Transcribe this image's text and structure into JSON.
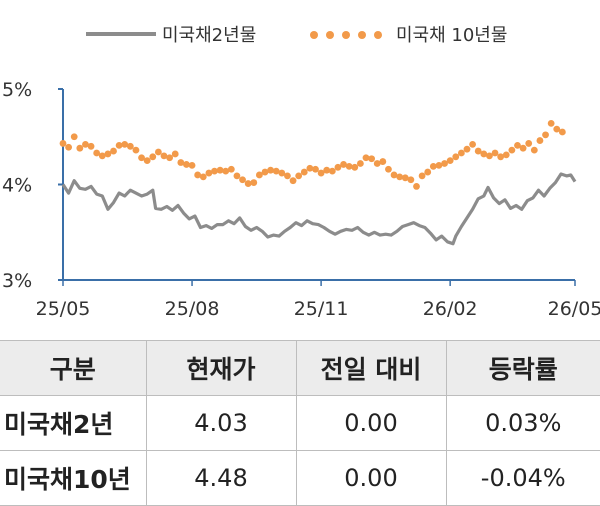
{
  "chart_data": {
    "type": "line",
    "series": [
      {
        "name": "미국채2년물",
        "color": "#8c8c8c",
        "style": "solid",
        "values": [
          [
            "2025-05-01",
            4.0
          ],
          [
            "2025-05-05",
            3.91
          ],
          [
            "2025-05-09",
            4.04
          ],
          [
            "2025-05-13",
            3.96
          ],
          [
            "2025-05-17",
            3.95
          ],
          [
            "2025-05-21",
            3.98
          ],
          [
            "2025-05-25",
            3.9
          ],
          [
            "2025-05-29",
            3.88
          ],
          [
            "2025-06-02",
            3.74
          ],
          [
            "2025-06-06",
            3.81
          ],
          [
            "2025-06-10",
            3.91
          ],
          [
            "2025-06-14",
            3.88
          ],
          [
            "2025-06-18",
            3.94
          ],
          [
            "2025-06-22",
            3.91
          ],
          [
            "2025-06-26",
            3.88
          ],
          [
            "2025-06-30",
            3.9
          ],
          [
            "2025-07-04",
            3.94
          ],
          [
            "2025-07-06",
            3.75
          ],
          [
            "2025-07-10",
            3.74
          ],
          [
            "2025-07-14",
            3.77
          ],
          [
            "2025-07-18",
            3.73
          ],
          [
            "2025-07-22",
            3.78
          ],
          [
            "2025-07-26",
            3.7
          ],
          [
            "2025-07-30",
            3.64
          ],
          [
            "2025-08-03",
            3.67
          ],
          [
            "2025-08-07",
            3.55
          ],
          [
            "2025-08-11",
            3.57
          ],
          [
            "2025-08-15",
            3.54
          ],
          [
            "2025-08-19",
            3.58
          ],
          [
            "2025-08-23",
            3.58
          ],
          [
            "2025-08-27",
            3.62
          ],
          [
            "2025-08-31",
            3.59
          ],
          [
            "2025-09-04",
            3.65
          ],
          [
            "2025-09-08",
            3.56
          ],
          [
            "2025-09-12",
            3.52
          ],
          [
            "2025-09-16",
            3.55
          ],
          [
            "2025-09-20",
            3.51
          ],
          [
            "2025-09-24",
            3.45
          ],
          [
            "2025-09-28",
            3.47
          ],
          [
            "2025-10-02",
            3.46
          ],
          [
            "2025-10-06",
            3.51
          ],
          [
            "2025-10-10",
            3.55
          ],
          [
            "2025-10-14",
            3.6
          ],
          [
            "2025-10-18",
            3.57
          ],
          [
            "2025-10-22",
            3.62
          ],
          [
            "2025-10-26",
            3.59
          ],
          [
            "2025-10-30",
            3.58
          ],
          [
            "2025-11-03",
            3.55
          ],
          [
            "2025-11-07",
            3.51
          ],
          [
            "2025-11-11",
            3.48
          ],
          [
            "2025-11-15",
            3.51
          ],
          [
            "2025-11-19",
            3.53
          ],
          [
            "2025-11-23",
            3.52
          ],
          [
            "2025-11-27",
            3.55
          ],
          [
            "2025-12-01",
            3.5
          ],
          [
            "2025-12-05",
            3.47
          ],
          [
            "2025-12-09",
            3.5
          ],
          [
            "2025-12-13",
            3.47
          ],
          [
            "2025-12-17",
            3.48
          ],
          [
            "2025-12-21",
            3.47
          ],
          [
            "2025-12-25",
            3.51
          ],
          [
            "2025-12-29",
            3.56
          ],
          [
            "2026-01-02",
            3.58
          ],
          [
            "2026-01-06",
            3.6
          ],
          [
            "2026-01-10",
            3.57
          ],
          [
            "2026-01-14",
            3.55
          ],
          [
            "2026-01-18",
            3.49
          ],
          [
            "2026-01-22",
            3.42
          ],
          [
            "2026-01-26",
            3.46
          ],
          [
            "2026-01-30",
            3.4
          ],
          [
            "2026-02-03",
            3.38
          ],
          [
            "2026-02-05",
            3.46
          ],
          [
            "2026-02-09",
            3.56
          ],
          [
            "2026-02-13",
            3.65
          ],
          [
            "2026-02-17",
            3.74
          ],
          [
            "2026-02-21",
            3.85
          ],
          [
            "2026-02-25",
            3.88
          ],
          [
            "2026-02-28",
            3.97
          ],
          [
            "2026-03-04",
            3.86
          ],
          [
            "2026-03-08",
            3.8
          ],
          [
            "2026-03-12",
            3.84
          ],
          [
            "2026-03-16",
            3.75
          ],
          [
            "2026-03-20",
            3.78
          ],
          [
            "2026-03-24",
            3.74
          ],
          [
            "2026-03-28",
            3.83
          ],
          [
            "2026-04-01",
            3.86
          ],
          [
            "2026-04-05",
            3.94
          ],
          [
            "2026-04-09",
            3.88
          ],
          [
            "2026-04-13",
            3.96
          ],
          [
            "2026-04-17",
            4.02
          ],
          [
            "2026-04-21",
            4.11
          ],
          [
            "2026-04-25",
            4.09
          ],
          [
            "2026-04-28",
            4.1
          ],
          [
            "2026-05-01",
            4.03
          ]
        ]
      },
      {
        "name": "미국채 10년물",
        "color": "#f29a4a",
        "style": "dotted",
        "values": [
          [
            "2025-05-01",
            4.43
          ],
          [
            "2025-05-05",
            4.39
          ],
          [
            "2025-05-09",
            4.5
          ],
          [
            "2025-05-13",
            4.38
          ],
          [
            "2025-05-17",
            4.42
          ],
          [
            "2025-05-21",
            4.4
          ],
          [
            "2025-05-25",
            4.33
          ],
          [
            "2025-05-29",
            4.3
          ],
          [
            "2025-06-02",
            4.32
          ],
          [
            "2025-06-06",
            4.35
          ],
          [
            "2025-06-10",
            4.41
          ],
          [
            "2025-06-14",
            4.42
          ],
          [
            "2025-06-18",
            4.4
          ],
          [
            "2025-06-22",
            4.36
          ],
          [
            "2025-06-26",
            4.28
          ],
          [
            "2025-06-30",
            4.25
          ],
          [
            "2025-07-04",
            4.29
          ],
          [
            "2025-07-08",
            4.34
          ],
          [
            "2025-07-12",
            4.3
          ],
          [
            "2025-07-16",
            4.28
          ],
          [
            "2025-07-20",
            4.32
          ],
          [
            "2025-07-24",
            4.23
          ],
          [
            "2025-07-28",
            4.21
          ],
          [
            "2025-08-01",
            4.2
          ],
          [
            "2025-08-05",
            4.1
          ],
          [
            "2025-08-09",
            4.08
          ],
          [
            "2025-08-13",
            4.12
          ],
          [
            "2025-08-17",
            4.14
          ],
          [
            "2025-08-21",
            4.15
          ],
          [
            "2025-08-25",
            4.14
          ],
          [
            "2025-08-29",
            4.16
          ],
          [
            "2025-09-02",
            4.09
          ],
          [
            "2025-09-06",
            4.05
          ],
          [
            "2025-09-10",
            4.01
          ],
          [
            "2025-09-14",
            4.02
          ],
          [
            "2025-09-18",
            4.1
          ],
          [
            "2025-09-22",
            4.13
          ],
          [
            "2025-09-26",
            4.15
          ],
          [
            "2025-09-30",
            4.14
          ],
          [
            "2025-10-04",
            4.12
          ],
          [
            "2025-10-08",
            4.09
          ],
          [
            "2025-10-12",
            4.04
          ],
          [
            "2025-10-16",
            4.09
          ],
          [
            "2025-10-20",
            4.13
          ],
          [
            "2025-10-24",
            4.17
          ],
          [
            "2025-10-28",
            4.16
          ],
          [
            "2025-11-01",
            4.12
          ],
          [
            "2025-11-05",
            4.15
          ],
          [
            "2025-11-09",
            4.14
          ],
          [
            "2025-11-13",
            4.18
          ],
          [
            "2025-11-17",
            4.21
          ],
          [
            "2025-11-21",
            4.19
          ],
          [
            "2025-11-25",
            4.18
          ],
          [
            "2025-11-29",
            4.22
          ],
          [
            "2025-12-03",
            4.28
          ],
          [
            "2025-12-07",
            4.27
          ],
          [
            "2025-12-11",
            4.22
          ],
          [
            "2025-12-15",
            4.24
          ],
          [
            "2025-12-19",
            4.16
          ],
          [
            "2025-12-23",
            4.1
          ],
          [
            "2025-12-27",
            4.08
          ],
          [
            "2025-12-31",
            4.07
          ],
          [
            "2026-01-04",
            4.05
          ],
          [
            "2026-01-08",
            3.98
          ],
          [
            "2026-01-12",
            4.09
          ],
          [
            "2026-01-16",
            4.13
          ],
          [
            "2026-01-20",
            4.19
          ],
          [
            "2026-01-24",
            4.2
          ],
          [
            "2026-01-28",
            4.22
          ],
          [
            "2026-02-01",
            4.25
          ],
          [
            "2026-02-05",
            4.29
          ],
          [
            "2026-02-09",
            4.33
          ],
          [
            "2026-02-13",
            4.37
          ],
          [
            "2026-02-17",
            4.42
          ],
          [
            "2026-02-21",
            4.35
          ],
          [
            "2026-02-25",
            4.32
          ],
          [
            "2026-03-01",
            4.3
          ],
          [
            "2026-03-05",
            4.33
          ],
          [
            "2026-03-09",
            4.29
          ],
          [
            "2026-03-13",
            4.31
          ],
          [
            "2026-03-17",
            4.36
          ],
          [
            "2026-03-21",
            4.41
          ],
          [
            "2026-03-25",
            4.38
          ],
          [
            "2026-03-29",
            4.43
          ],
          [
            "2026-04-02",
            4.36
          ],
          [
            "2026-04-06",
            4.46
          ],
          [
            "2026-04-10",
            4.52
          ],
          [
            "2026-04-14",
            4.64
          ],
          [
            "2026-04-18",
            4.58
          ],
          [
            "2026-04-22",
            4.55
          ]
        ]
      }
    ],
    "x_ticks": [
      "25/05",
      "25/08",
      "25/11",
      "26/02",
      "26/05"
    ],
    "x_tick_dates": [
      "2025-05-01",
      "2025-08-01",
      "2025-11-01",
      "2026-02-01",
      "2026-05-01"
    ],
    "y_ticks": [
      "3%",
      "4%",
      "5%"
    ],
    "y_tick_values": [
      3,
      4,
      5
    ],
    "ylim": [
      3,
      5
    ],
    "xlim": [
      "2025-05-01",
      "2026-05-01"
    ],
    "grid": false,
    "legend_position": "top"
  },
  "table": {
    "headers": [
      "구분",
      "현재가",
      "전일 대비",
      "등락률"
    ],
    "rows": [
      [
        "미국채2년",
        "4.03",
        "0.00",
        "0.03%"
      ],
      [
        "미국채10년",
        "4.48",
        "0.00",
        "-0.04%"
      ]
    ]
  }
}
